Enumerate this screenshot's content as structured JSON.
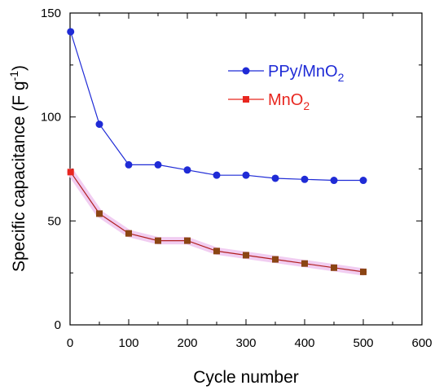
{
  "chart_data": {
    "type": "line",
    "xlabel": "Cycle number",
    "ylabel_main": "Specific capacitance (F g",
    "ylabel_sup": "-1",
    "ylabel_close": ")",
    "xlim": [
      0,
      600
    ],
    "ylim": [
      0,
      150
    ],
    "xticks": [
      "0",
      "100",
      "200",
      "300",
      "400",
      "500",
      "600"
    ],
    "yticks": [
      "0",
      "50",
      "100",
      "150"
    ],
    "legend_position": "top-right",
    "series": [
      {
        "name_main": "PPy/MnO",
        "name_sub": "2",
        "color": "#1f2bd6",
        "marker": "circle",
        "x": [
          1,
          50,
          100,
          150,
          200,
          250,
          300,
          350,
          400,
          450,
          500
        ],
        "y": [
          141,
          96.5,
          77,
          77,
          74.5,
          72,
          72,
          70.5,
          70,
          69.5,
          69.5
        ]
      },
      {
        "name_main": "MnO",
        "name_sub": "2",
        "color": "#e8261f",
        "line_color": "#b01f1f",
        "marker": "square",
        "marker_fill": "#8b4513",
        "x": [
          1,
          50,
          100,
          150,
          200,
          250,
          300,
          350,
          400,
          450,
          500
        ],
        "y": [
          73.5,
          53.5,
          44,
          40.5,
          40.5,
          35.5,
          33.5,
          31.5,
          29.5,
          27.5,
          25.5
        ]
      }
    ]
  }
}
